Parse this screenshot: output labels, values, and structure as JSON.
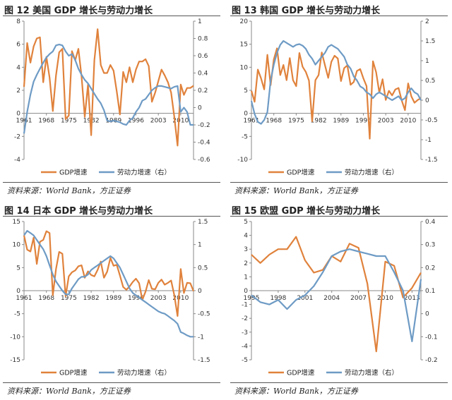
{
  "panels": [
    {
      "title": "图 12 美国 GDP 增长与劳动力增长",
      "source": "资料来源：World Bank，方正证券"
    },
    {
      "title": "图 13 韩国 GDP 增长与劳动力增长",
      "source": "资料来源：World Bank，方正证券"
    },
    {
      "title": "图 14 日本 GDP 增长与劳动力增长",
      "source": "资料来源：World Bank，方正证券"
    },
    {
      "title": "图 15 欧盟 GDP 增长与劳动力增长",
      "source": "资料来源：World Bank，方正证券"
    }
  ],
  "colors": {
    "gdp": "#E0823C",
    "labor": "#6E9BC5"
  },
  "chart_data": [
    {
      "type": "line",
      "title": "美国 GDP 增长与劳动力增长",
      "x": [
        1961,
        1962,
        1963,
        1964,
        1965,
        1966,
        1967,
        1968,
        1969,
        1970,
        1971,
        1972,
        1973,
        1974,
        1975,
        1976,
        1977,
        1978,
        1979,
        1980,
        1981,
        1982,
        1983,
        1984,
        1985,
        1986,
        1987,
        1988,
        1989,
        1990,
        1991,
        1992,
        1993,
        1994,
        1995,
        1996,
        1997,
        1998,
        1999,
        2000,
        2001,
        2002,
        2003,
        2004,
        2005,
        2006,
        2007,
        2008,
        2009,
        2010,
        2011,
        2012,
        2013,
        2014
      ],
      "x_ticks": [
        1961,
        1968,
        1975,
        1982,
        1989,
        1996,
        2003,
        2010
      ],
      "ylim": [
        -4,
        8
      ],
      "y_ticks": [
        -4,
        -2,
        0,
        2,
        4,
        6,
        8
      ],
      "y2lim": [
        -0.6,
        1.0
      ],
      "y2_ticks": [
        "-0.6",
        "-0.4",
        "-0.2",
        "0",
        "0.2",
        "0.4",
        "0.6",
        "0.8",
        "1"
      ],
      "series": [
        {
          "name": "GDP增速",
          "axis": "left",
          "values": [
            2.3,
            6.1,
            4.4,
            5.8,
            6.5,
            6.6,
            2.7,
            4.9,
            3.1,
            0.2,
            3.3,
            5.3,
            5.6,
            -0.5,
            -0.2,
            5.4,
            4.6,
            5.6,
            3.2,
            -0.3,
            2.5,
            -1.9,
            4.6,
            7.3,
            4.2,
            3.5,
            3.5,
            4.2,
            3.7,
            1.9,
            -0.1,
            3.6,
            2.7,
            4.0,
            2.7,
            3.8,
            4.5,
            4.5,
            4.7,
            4.1,
            1.0,
            1.8,
            2.8,
            3.8,
            3.3,
            2.7,
            1.8,
            -0.3,
            -2.8,
            2.5,
            1.6,
            2.2,
            2.2,
            2.4
          ]
        },
        {
          "name": "劳动力增速（右）",
          "axis": "right",
          "values": [
            -0.3,
            -0.05,
            0.15,
            0.3,
            0.38,
            0.45,
            0.52,
            0.58,
            0.62,
            0.65,
            0.72,
            0.73,
            0.72,
            0.65,
            0.6,
            0.62,
            0.55,
            0.45,
            0.38,
            0.32,
            0.28,
            0.22,
            0.16,
            0.1,
            0.05,
            -0.03,
            -0.15,
            -0.16,
            -0.15,
            -0.16,
            -0.17,
            -0.19,
            -0.2,
            -0.15,
            -0.12,
            -0.05,
            0.0,
            0.08,
            0.1,
            0.15,
            0.2,
            0.23,
            0.25,
            0.25,
            0.24,
            0.23,
            0.22,
            0.24,
            0.25,
            -0.05,
            0.0,
            -0.05,
            -0.2,
            -0.2
          ]
        }
      ]
    },
    {
      "type": "line",
      "title": "韩国 GDP 增长与劳动力增长",
      "x": [
        1961,
        1962,
        1963,
        1964,
        1965,
        1966,
        1967,
        1968,
        1969,
        1970,
        1971,
        1972,
        1973,
        1974,
        1975,
        1976,
        1977,
        1978,
        1979,
        1980,
        1981,
        1982,
        1983,
        1984,
        1985,
        1986,
        1987,
        1988,
        1989,
        1990,
        1991,
        1992,
        1993,
        1994,
        1995,
        1996,
        1997,
        1998,
        1999,
        2000,
        2001,
        2002,
        2003,
        2004,
        2005,
        2006,
        2007,
        2008,
        2009,
        2010,
        2011,
        2012,
        2013,
        2014
      ],
      "x_ticks": [
        1961,
        1968,
        1975,
        1982,
        1989,
        1996,
        2003,
        2010
      ],
      "ylim": [
        -10,
        20
      ],
      "y_ticks": [
        -10,
        -5,
        0,
        5,
        10,
        15,
        20
      ],
      "y2lim": [
        -1.5,
        2.0
      ],
      "y2_ticks": [
        "-1.5",
        "-1",
        "-0.5",
        "0",
        "0.5",
        "1",
        "1.5",
        "2"
      ],
      "series": [
        {
          "name": "GDP增速",
          "axis": "left",
          "values": [
            4.9,
            2.5,
            9.5,
            7.6,
            5.2,
            12.7,
            6.1,
            11.7,
            14.1,
            8.3,
            10.5,
            7.2,
            12.0,
            7.2,
            5.9,
            13.1,
            10.1,
            9.0,
            7.1,
            -1.7,
            7.2,
            8.3,
            13.2,
            10.4,
            7.7,
            11.2,
            12.5,
            11.9,
            7.0,
            9.8,
            10.4,
            6.2,
            6.8,
            9.2,
            9.6,
            7.6,
            5.9,
            -5.5,
            11.3,
            8.9,
            4.5,
            7.4,
            2.9,
            4.9,
            3.9,
            5.2,
            5.5,
            2.8,
            0.7,
            6.5,
            3.7,
            2.3,
            2.9,
            3.3
          ]
        },
        {
          "name": "劳动力增速（右）",
          "axis": "right",
          "values": [
            -0.02,
            -0.35,
            -0.55,
            -0.6,
            -0.5,
            -0.3,
            0.5,
            0.9,
            1.2,
            1.4,
            1.5,
            1.45,
            1.4,
            1.35,
            1.4,
            1.42,
            1.38,
            1.3,
            1.15,
            1.05,
            0.9,
            1.0,
            1.1,
            1.2,
            1.35,
            1.4,
            1.35,
            1.3,
            1.2,
            1.1,
            0.9,
            0.8,
            0.6,
            0.5,
            0.35,
            0.3,
            0.2,
            0.15,
            0.05,
            0.15,
            0.2,
            0.15,
            0.1,
            0.05,
            0.0,
            0.05,
            0.1,
            0.0,
            0.05,
            0.2,
            0.3,
            0.2,
            0.15,
            0.0
          ]
        }
      ]
    },
    {
      "type": "line",
      "title": "日本 GDP 增长与劳动力增长",
      "x": [
        1961,
        1962,
        1963,
        1964,
        1965,
        1966,
        1967,
        1968,
        1969,
        1970,
        1971,
        1972,
        1973,
        1974,
        1975,
        1976,
        1977,
        1978,
        1979,
        1980,
        1981,
        1982,
        1983,
        1984,
        1985,
        1986,
        1987,
        1988,
        1989,
        1990,
        1991,
        1992,
        1993,
        1994,
        1995,
        1996,
        1997,
        1998,
        1999,
        2000,
        2001,
        2002,
        2003,
        2004,
        2005,
        2006,
        2007,
        2008,
        2009,
        2010,
        2011,
        2012,
        2013,
        2014
      ],
      "x_ticks": [
        1961,
        1968,
        1975,
        1982,
        1989,
        1996,
        2003,
        2010
      ],
      "ylim": [
        -15,
        15
      ],
      "y_ticks": [
        -15,
        -10,
        -5,
        0,
        5,
        10,
        15
      ],
      "y2lim": [
        -1.5,
        1.5
      ],
      "y2_ticks": [
        "-1.5",
        "-1",
        "-0.5",
        "0",
        "0.5",
        "1",
        "1.5"
      ],
      "series": [
        {
          "name": "GDP增速",
          "axis": "left",
          "values": [
            12.0,
            8.9,
            8.5,
            11.5,
            5.8,
            10.6,
            11.0,
            12.9,
            12.5,
            -1.0,
            4.7,
            8.4,
            8.0,
            -1.2,
            3.1,
            4.0,
            4.4,
            5.3,
            5.5,
            2.8,
            4.2,
            3.4,
            3.1,
            4.5,
            6.3,
            2.8,
            4.1,
            7.1,
            5.4,
            5.6,
            3.3,
            0.8,
            0.2,
            0.9,
            1.9,
            2.6,
            1.6,
            -2.0,
            -0.2,
            2.3,
            0.4,
            0.3,
            1.7,
            2.4,
            1.3,
            1.7,
            2.2,
            -1.0,
            -5.5,
            4.7,
            -0.5,
            1.7,
            1.6,
            -0.1
          ]
        },
        {
          "name": "劳动力增速（右）",
          "axis": "right",
          "values": [
            1.2,
            1.3,
            1.25,
            1.2,
            1.1,
            1.0,
            0.9,
            0.75,
            0.55,
            0.35,
            0.2,
            0.1,
            0.0,
            -0.08,
            -0.08,
            0.05,
            0.15,
            0.25,
            0.3,
            0.3,
            0.35,
            0.45,
            0.5,
            0.55,
            0.6,
            0.65,
            0.7,
            0.75,
            0.7,
            0.6,
            0.5,
            0.35,
            0.2,
            0.05,
            -0.05,
            -0.1,
            -0.15,
            -0.2,
            -0.25,
            -0.3,
            -0.35,
            -0.4,
            -0.45,
            -0.48,
            -0.5,
            -0.55,
            -0.6,
            -0.65,
            -0.72,
            -0.9,
            -0.93,
            -0.97,
            -1.0,
            -1.0
          ]
        }
      ]
    },
    {
      "type": "line",
      "title": "欧盟 GDP 增长与劳动力增长",
      "x": [
        1995,
        1996,
        1997,
        1998,
        1999,
        2000,
        2001,
        2002,
        2003,
        2004,
        2005,
        2006,
        2007,
        2008,
        2009,
        2010,
        2011,
        2012,
        2013,
        2014
      ],
      "x_ticks": [
        1995,
        1998,
        2001,
        2004,
        2007,
        2010,
        2013
      ],
      "ylim": [
        -5,
        5
      ],
      "y_ticks": [
        -5,
        -4,
        -3,
        -2,
        -1,
        0,
        1,
        2,
        3,
        4,
        5
      ],
      "y2lim": [
        -0.2,
        0.4
      ],
      "y2_ticks": [
        "-0.2",
        "-0.1",
        "0",
        "0.1",
        "0.2",
        "0.3",
        "0.4"
      ],
      "series": [
        {
          "name": "GDP增速",
          "axis": "left",
          "values": [
            2.6,
            2.0,
            2.6,
            3.0,
            3.0,
            3.9,
            2.2,
            1.3,
            1.5,
            2.5,
            2.1,
            3.4,
            3.1,
            0.5,
            -4.4,
            2.1,
            1.8,
            -0.5,
            0.2,
            1.3
          ]
        },
        {
          "name": "劳动力增速（右）",
          "axis": "right",
          "values": [
            0.08,
            0.05,
            0.04,
            0.06,
            0.02,
            0.06,
            0.08,
            0.12,
            0.18,
            0.25,
            0.27,
            0.28,
            0.27,
            0.26,
            0.25,
            0.25,
            0.18,
            0.1,
            -0.12,
            0.15
          ]
        }
      ]
    }
  ]
}
